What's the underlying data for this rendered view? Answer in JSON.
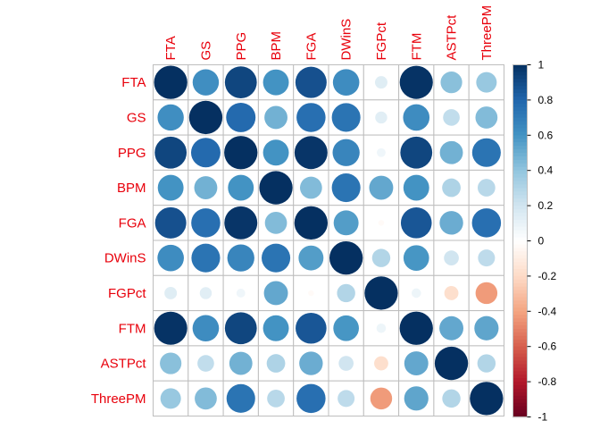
{
  "chart_data": {
    "type": "heatmap",
    "variables": [
      "FTA",
      "GS",
      "PPG",
      "BPM",
      "FGA",
      "DWinS",
      "FGPct",
      "FTM",
      "ASTPct",
      "ThreePM"
    ],
    "matrix": [
      [
        1.0,
        0.62,
        0.92,
        0.6,
        0.88,
        0.63,
        0.14,
        0.99,
        0.42,
        0.38
      ],
      [
        0.62,
        1.0,
        0.78,
        0.48,
        0.76,
        0.74,
        0.13,
        0.63,
        0.25,
        0.44
      ],
      [
        0.92,
        0.78,
        1.0,
        0.6,
        0.98,
        0.66,
        0.07,
        0.92,
        0.48,
        0.74
      ],
      [
        0.6,
        0.48,
        0.6,
        1.0,
        0.44,
        0.74,
        0.52,
        0.6,
        0.31,
        0.28
      ],
      [
        0.88,
        0.76,
        0.98,
        0.44,
        1.0,
        0.56,
        -0.03,
        0.86,
        0.5,
        0.76
      ],
      [
        0.63,
        0.74,
        0.66,
        0.74,
        0.56,
        1.0,
        0.3,
        0.59,
        0.2,
        0.26
      ],
      [
        0.14,
        0.13,
        0.07,
        0.52,
        -0.03,
        0.3,
        1.0,
        0.08,
        -0.18,
        -0.43
      ],
      [
        0.99,
        0.63,
        0.92,
        0.6,
        0.86,
        0.59,
        0.08,
        1.0,
        0.52,
        0.53
      ],
      [
        0.42,
        0.25,
        0.48,
        0.31,
        0.5,
        0.2,
        -0.18,
        0.52,
        1.0,
        0.3
      ],
      [
        0.38,
        0.44,
        0.74,
        0.28,
        0.76,
        0.26,
        -0.43,
        0.53,
        0.3,
        1.0
      ]
    ],
    "method": "circle",
    "grid": true,
    "legend": "right",
    "colorbar": {
      "range": [
        -1,
        1
      ],
      "ticks": [
        "1",
        "0.8",
        "0.6",
        "0.4",
        "0.2",
        "0",
        "-0.2",
        "-0.4",
        "-0.6",
        "-0.8",
        "-1"
      ],
      "colors": [
        "#67001F",
        "#B2182B",
        "#D6604D",
        "#F4A582",
        "#FDDBC7",
        "#FFFFFF",
        "#D1E5F0",
        "#92C5DE",
        "#4393C3",
        "#2166AC",
        "#053061"
      ]
    },
    "label_color": "#e8000b"
  }
}
